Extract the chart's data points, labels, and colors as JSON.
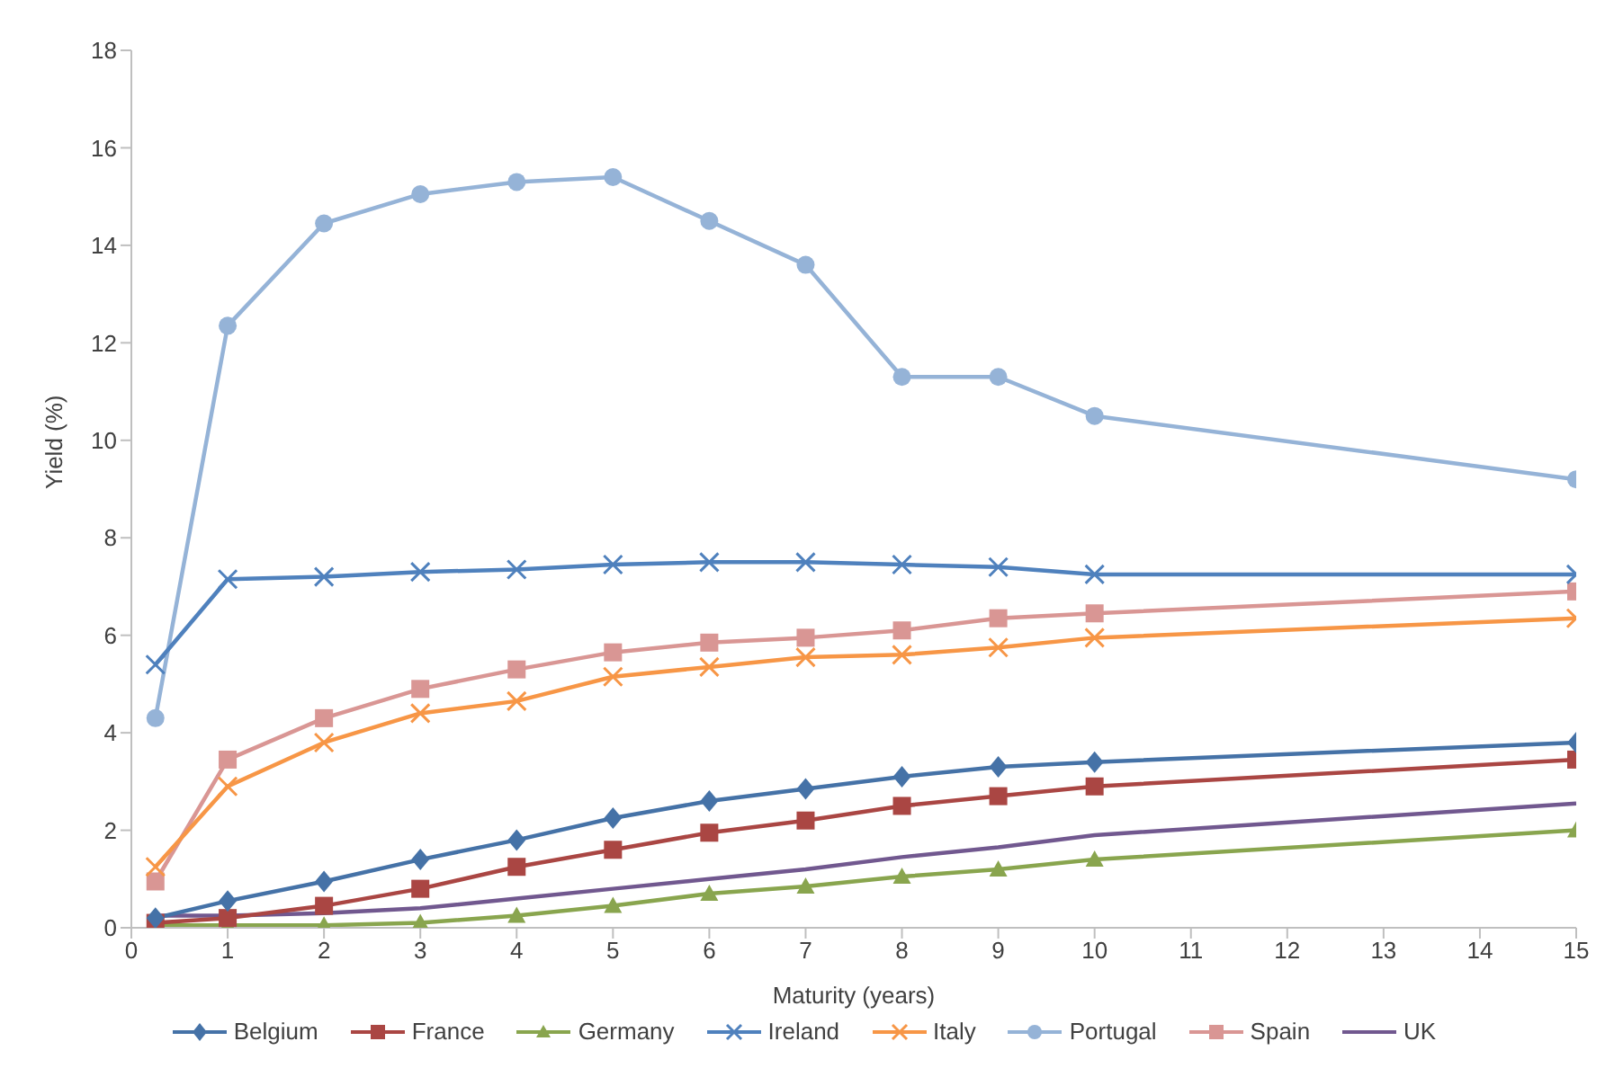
{
  "chart_data": {
    "type": "line",
    "xlabel": "Maturity  (years)",
    "ylabel": "Yield (%)",
    "x": [
      0.25,
      1,
      2,
      3,
      4,
      5,
      6,
      7,
      8,
      9,
      10,
      15
    ],
    "xlim": [
      0,
      15
    ],
    "xticks": [
      0,
      1,
      2,
      3,
      4,
      5,
      6,
      7,
      8,
      9,
      10,
      11,
      12,
      13,
      14,
      15
    ],
    "ylim": [
      0,
      18
    ],
    "yticks": [
      0,
      2,
      4,
      6,
      8,
      10,
      12,
      14,
      16,
      18
    ],
    "grid": false,
    "legend": "bottom",
    "series": [
      {
        "name": "Belgium",
        "color": "#4572a7",
        "marker": "diamond",
        "values": [
          0.2,
          0.55,
          0.95,
          1.4,
          1.8,
          2.25,
          2.6,
          2.85,
          3.1,
          3.3,
          3.4,
          3.8
        ]
      },
      {
        "name": "France",
        "color": "#aa4643",
        "marker": "square",
        "values": [
          0.1,
          0.2,
          0.45,
          0.8,
          1.25,
          1.6,
          1.95,
          2.2,
          2.5,
          2.7,
          2.9,
          3.45
        ]
      },
      {
        "name": "Germany",
        "color": "#89a54e",
        "marker": "triangle",
        "values": [
          0.05,
          0.05,
          0.05,
          0.1,
          0.25,
          0.45,
          0.7,
          0.85,
          1.05,
          1.2,
          1.4,
          2.0
        ]
      },
      {
        "name": "Ireland",
        "color": "#4f81bd",
        "marker": "cross",
        "values": [
          5.4,
          7.15,
          7.2,
          7.3,
          7.35,
          7.45,
          7.5,
          7.5,
          7.45,
          7.4,
          7.25,
          7.25
        ]
      },
      {
        "name": "Italy",
        "color": "#f79646",
        "marker": "cross",
        "values": [
          1.25,
          2.9,
          3.8,
          4.4,
          4.65,
          5.15,
          5.35,
          5.55,
          5.6,
          5.75,
          5.95,
          6.35
        ]
      },
      {
        "name": "Portugal",
        "color": "#95b3d7",
        "marker": "circle",
        "values": [
          4.3,
          12.35,
          14.45,
          15.05,
          15.3,
          15.4,
          14.5,
          13.6,
          11.3,
          11.3,
          10.5,
          9.2
        ]
      },
      {
        "name": "Spain",
        "color": "#d99694",
        "marker": "square",
        "values": [
          0.95,
          3.45,
          4.3,
          4.9,
          5.3,
          5.65,
          5.85,
          5.95,
          6.1,
          6.35,
          6.45,
          6.9
        ]
      },
      {
        "name": "UK",
        "color": "#71588f",
        "marker": "none",
        "values": [
          0.25,
          0.25,
          0.3,
          0.4,
          0.6,
          0.8,
          1.0,
          1.2,
          1.45,
          1.65,
          1.9,
          2.55
        ]
      }
    ]
  }
}
